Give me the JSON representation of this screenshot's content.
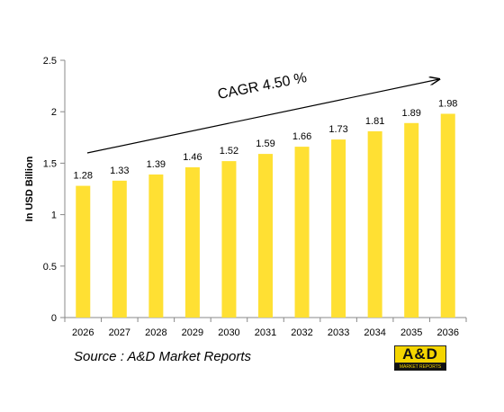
{
  "chart_data": {
    "type": "bar",
    "categories": [
      "2026",
      "2027",
      "2028",
      "2029",
      "2030",
      "2031",
      "2032",
      "2033",
      "2034",
      "2035",
      "2036"
    ],
    "values": [
      1.28,
      1.33,
      1.39,
      1.46,
      1.52,
      1.59,
      1.66,
      1.73,
      1.81,
      1.89,
      1.98
    ],
    "value_labels": [
      "1.28",
      "1.33",
      "1.39",
      "1.46",
      "1.52",
      "1.59",
      "1.66",
      "1.73",
      "1.81",
      "1.89",
      "1.98"
    ],
    "ylabel": "In USD Billion",
    "ylim": [
      0,
      2.5
    ],
    "yticks": [
      0,
      0.5,
      1,
      1.5,
      2,
      2.5
    ],
    "ytick_labels": [
      "0",
      "0.5",
      "1",
      "1.5",
      "2",
      "2.5"
    ],
    "grid": false,
    "bar_color": "#FFE033",
    "annotation": "CAGR 4.50 %"
  },
  "footer": {
    "source": "Source : A&D Market Reports",
    "logo_text": "A&D",
    "logo_subtext": "MARKET REPORTS"
  }
}
